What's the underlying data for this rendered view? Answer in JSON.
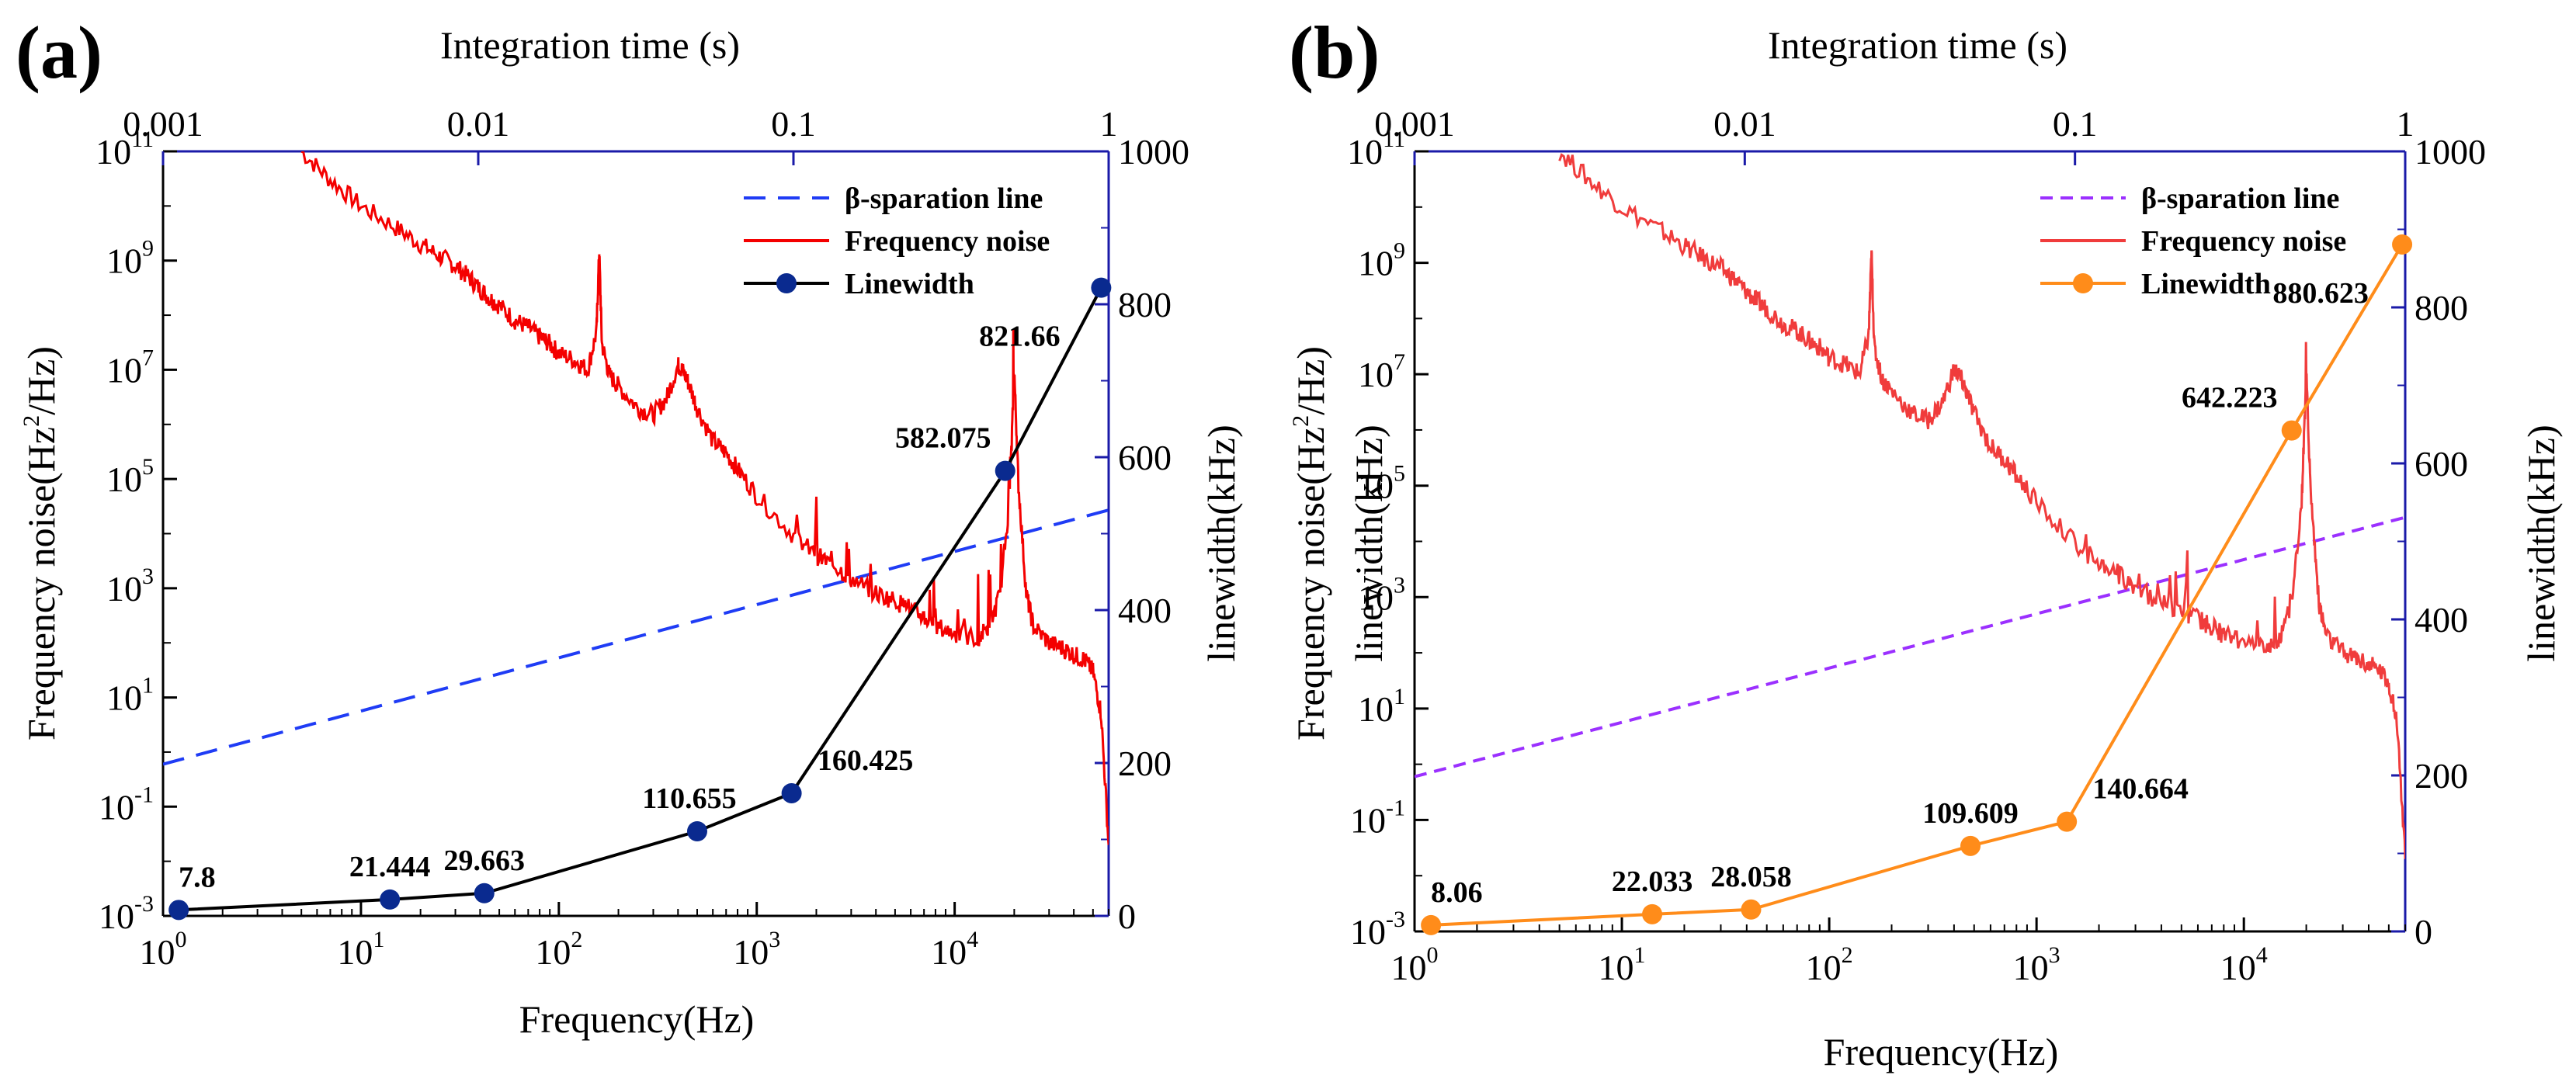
{
  "chart_data": [
    {
      "type": "line",
      "panel_label": "(a)",
      "top_axis": {
        "label": "Integration time (s)",
        "ticks": [
          "0.001",
          "0.01",
          "0.1",
          "1"
        ],
        "range": [
          0.001,
          1
        ],
        "scale": "log"
      },
      "x_axis": {
        "label": "Frequency(Hz)",
        "range": [
          1,
          60000
        ],
        "scale": "log",
        "ticks": [
          {
            "base": "10",
            "exp": "0"
          },
          {
            "base": "10",
            "exp": "1"
          },
          {
            "base": "10",
            "exp": "2"
          },
          {
            "base": "10",
            "exp": "3"
          },
          {
            "base": "10",
            "exp": "4"
          }
        ]
      },
      "y_left": {
        "label_main": "Frequency noise(Hz",
        "label_sup": "2",
        "label_end": "/Hz)",
        "range": [
          0.001,
          100000000000.0
        ],
        "scale": "log",
        "ticks": [
          {
            "base": "10",
            "exp": "-3"
          },
          {
            "base": "10",
            "exp": "-1"
          },
          {
            "base": "10",
            "exp": "1"
          },
          {
            "base": "10",
            "exp": "3"
          },
          {
            "base": "10",
            "exp": "5"
          },
          {
            "base": "10",
            "exp": "7"
          },
          {
            "base": "10",
            "exp": "9"
          },
          {
            "base": "10",
            "exp": "11"
          }
        ]
      },
      "y_right": {
        "label": "linewidth(kHz)",
        "range": [
          0,
          1000
        ],
        "ticks": [
          "0",
          "200",
          "400",
          "600",
          "800",
          "1000"
        ]
      },
      "legend": [
        "β-sparation line",
        "Frequency noise",
        "Linewidth"
      ],
      "colors": {
        "separation": "#1f3cf5",
        "noise": "#f40000",
        "linewidth": "#000000",
        "marker": "#0a2a8f",
        "axis": "#1a1aa8"
      },
      "separation_line": {
        "x": [
          1,
          60000
        ],
        "y": [
          0.6,
          27000
        ]
      },
      "frequency_noise": {
        "x": [
          5,
          7,
          10,
          15,
          20,
          25,
          30,
          35,
          40,
          45,
          50,
          60,
          70,
          80,
          90,
          100,
          120,
          140,
          155,
          160,
          165,
          180,
          200,
          250,
          300,
          350,
          400,
          420,
          450,
          500,
          600,
          700,
          800,
          1000,
          1500,
          2000,
          2500,
          3000,
          4000,
          5000,
          6000,
          7000,
          8000,
          10000,
          13000,
          15000,
          17000,
          19000,
          20000,
          21000,
          23000,
          25000,
          30000,
          35000,
          40000,
          45000,
          50000,
          55000,
          60000
        ],
        "y": [
          100000000000.0,
          30000000000.0,
          10000000000.0,
          4000000000.0,
          2000000000.0,
          1200000000.0,
          800000000.0,
          500000000.0,
          300000000.0,
          200000000.0,
          150000000.0,
          80000000.0,
          60000000.0,
          40000000.0,
          30000000.0,
          20000000.0,
          15000000.0,
          10000000.0,
          50000000.0,
          1500000000.0,
          30000000.0,
          8000000.0,
          5000000.0,
          2000000.0,
          1500000.0,
          3000000.0,
          12000000.0,
          10000000.0,
          6000000.0,
          2000000.0,
          500000.0,
          300000.0,
          150000.0,
          50000.0,
          10000.0,
          4000,
          2500,
          1500,
          800,
          600,
          400,
          300,
          200,
          150,
          120,
          200,
          800,
          50000.0,
          10000000.0,
          80000.0,
          800,
          200,
          100,
          80,
          60,
          50,
          30,
          5,
          0.02
        ]
      },
      "linewidth": {
        "x": [
          1.2,
          14,
          42,
          500,
          1500,
          18000,
          55000
        ],
        "y": [
          7.8,
          21.444,
          29.663,
          110.655,
          160.425,
          582.075,
          821.66
        ],
        "labels": [
          "7.8",
          "21.444",
          "29.663",
          "110.655",
          "160.425",
          "582.075",
          "821.66"
        ]
      }
    },
    {
      "type": "line",
      "panel_label": "(b)",
      "top_axis": {
        "label": "Integration time (s)",
        "ticks": [
          "0.001",
          "0.01",
          "0.1",
          "1"
        ],
        "range": [
          0.001,
          1
        ],
        "scale": "log"
      },
      "x_axis": {
        "label": "Frequency(Hz)",
        "range": [
          1,
          60000
        ],
        "scale": "log",
        "ticks": [
          {
            "base": "10",
            "exp": "0"
          },
          {
            "base": "10",
            "exp": "1"
          },
          {
            "base": "10",
            "exp": "2"
          },
          {
            "base": "10",
            "exp": "3"
          },
          {
            "base": "10",
            "exp": "4"
          }
        ]
      },
      "y_left": {
        "label_main": "Frequency noise(Hz",
        "label_sup": "2",
        "label_end": "/Hz)",
        "range": [
          0.001,
          100000000000.0
        ],
        "scale": "log",
        "ticks": [
          {
            "base": "10",
            "exp": "-3"
          },
          {
            "base": "10",
            "exp": "-1"
          },
          {
            "base": "10",
            "exp": "1"
          },
          {
            "base": "10",
            "exp": "3"
          },
          {
            "base": "10",
            "exp": "5"
          },
          {
            "base": "10",
            "exp": "7"
          },
          {
            "base": "10",
            "exp": "9"
          },
          {
            "base": "10",
            "exp": "11"
          }
        ]
      },
      "y_right": {
        "label": "linewidth(kHz)",
        "range": [
          0,
          1000
        ],
        "ticks": [
          "0",
          "200",
          "400",
          "600",
          "800",
          "1000"
        ]
      },
      "y_left_extra_label": "linewidth(kHz)",
      "legend": [
        "β-sparation line",
        "Frequency noise",
        "Linewidth"
      ],
      "colors": {
        "separation": "#9b30ff",
        "noise": "#f03c3c",
        "linewidth": "#ff8c1a",
        "marker": "#ff8c1a",
        "axis": "#1a1aa8"
      },
      "separation_line": {
        "x": [
          1,
          60000
        ],
        "y": [
          0.6,
          27000
        ]
      },
      "frequency_noise": {
        "x": [
          5,
          7,
          10,
          15,
          20,
          25,
          30,
          35,
          40,
          45,
          50,
          60,
          70,
          80,
          90,
          100,
          120,
          140,
          155,
          160,
          165,
          180,
          200,
          250,
          300,
          350,
          400,
          420,
          450,
          500,
          600,
          700,
          800,
          1000,
          1500,
          2000,
          2500,
          3000,
          4000,
          5000,
          6000,
          7000,
          8000,
          10000,
          13000,
          15000,
          17000,
          19000,
          20000,
          21000,
          23000,
          25000,
          30000,
          35000,
          40000,
          45000,
          50000,
          55000,
          60000
        ],
        "y": [
          100000000000.0,
          30000000000.0,
          10000000000.0,
          4000000000.0,
          2000000000.0,
          1200000000.0,
          800000000.0,
          500000000.0,
          300000000.0,
          200000000.0,
          150000000.0,
          80000000.0,
          60000000.0,
          40000000.0,
          30000000.0,
          20000000.0,
          15000000.0,
          10000000.0,
          50000000.0,
          1500000000.0,
          30000000.0,
          8000000.0,
          5000000.0,
          2000000.0,
          1500000.0,
          3000000.0,
          12000000.0,
          10000000.0,
          6000000.0,
          2000000.0,
          500000.0,
          300000.0,
          150000.0,
          50000.0,
          10000.0,
          4000,
          2500,
          1500,
          800,
          600,
          400,
          300,
          200,
          150,
          120,
          200,
          800,
          50000.0,
          10000000.0,
          80000.0,
          800,
          200,
          100,
          80,
          60,
          50,
          30,
          5,
          0.02
        ]
      },
      "linewidth": {
        "x": [
          1.2,
          14,
          42,
          480,
          1400,
          17000,
          58000
        ],
        "y": [
          8.06,
          22.033,
          28.058,
          109.609,
          140.664,
          642.223,
          880.623
        ],
        "labels": [
          "8.06",
          "22.033",
          "28.058",
          "109.609",
          "140.664",
          "642.223",
          "880.623"
        ]
      }
    }
  ]
}
